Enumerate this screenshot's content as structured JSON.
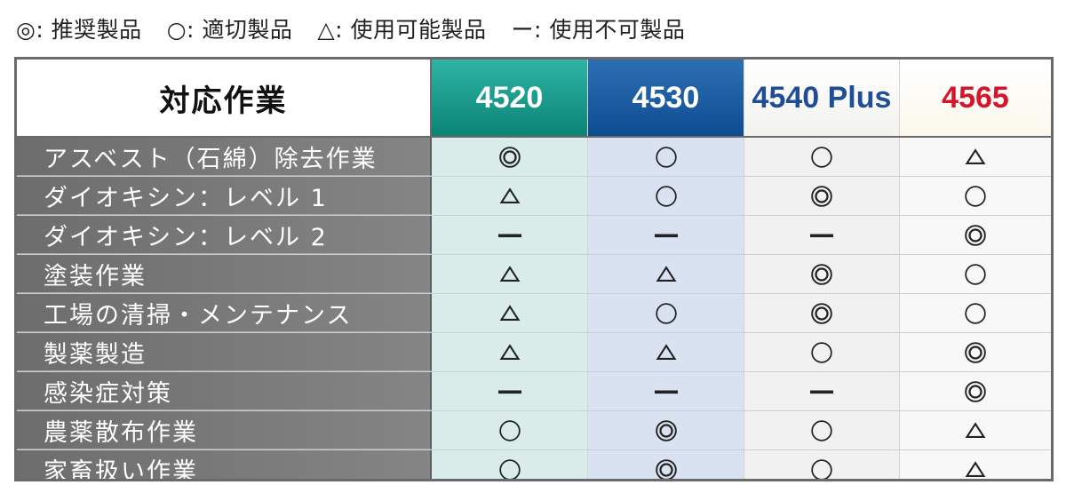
{
  "legend": [
    {
      "symbol": "double-circle",
      "label": "◎: 推奨製品"
    },
    {
      "symbol": "circle",
      "label": "○: 適切製品"
    },
    {
      "symbol": "triangle",
      "label": "△: 使用可能製品"
    },
    {
      "symbol": "dash",
      "label": "ー: 使用不可製品"
    }
  ],
  "table": {
    "task_header": "対応作業",
    "products": [
      {
        "name": "4520",
        "color": "#0a8475"
      },
      {
        "name": "4530",
        "color": "#0e4c92"
      },
      {
        "name": "4540 Plus",
        "color": "#1f4e96"
      },
      {
        "name": "4565",
        "color": "#d8142b"
      }
    ],
    "rows": [
      {
        "task": "アスベスト（石綿）除去作業",
        "ratings": [
          "double-circle",
          "circle",
          "circle",
          "triangle"
        ]
      },
      {
        "task": "ダイオキシン：レベル 1",
        "ratings": [
          "triangle",
          "circle",
          "double-circle",
          "circle"
        ]
      },
      {
        "task": "ダイオキシン：レベル 2",
        "ratings": [
          "dash",
          "dash",
          "dash",
          "double-circle"
        ]
      },
      {
        "task": "塗装作業",
        "ratings": [
          "triangle",
          "triangle",
          "double-circle",
          "circle"
        ]
      },
      {
        "task": "工場の清掃・メンテナンス",
        "ratings": [
          "triangle",
          "circle",
          "double-circle",
          "circle"
        ]
      },
      {
        "task": "製薬製造",
        "ratings": [
          "triangle",
          "triangle",
          "circle",
          "double-circle"
        ]
      },
      {
        "task": "感染症対策",
        "ratings": [
          "dash",
          "dash",
          "dash",
          "double-circle"
        ]
      },
      {
        "task": "農薬散布作業",
        "ratings": [
          "circle",
          "double-circle",
          "circle",
          "triangle"
        ]
      },
      {
        "task": "家畜扱い作業",
        "ratings": [
          "circle",
          "double-circle",
          "circle",
          "triangle"
        ]
      }
    ]
  }
}
